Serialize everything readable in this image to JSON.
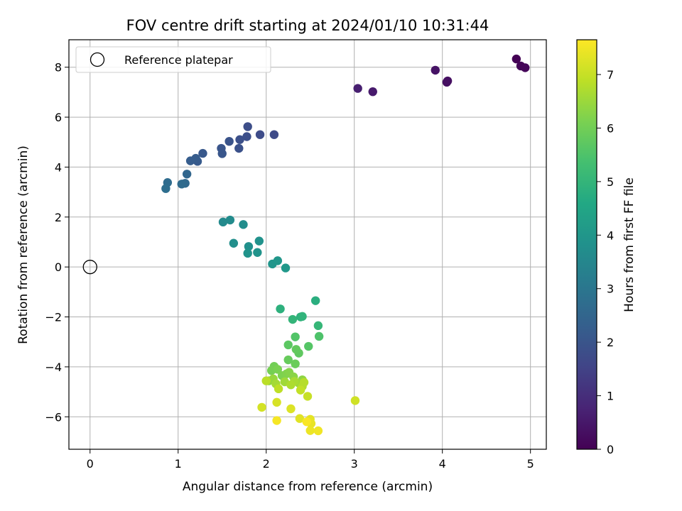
{
  "chart_data": {
    "type": "scatter",
    "title": "FOV centre drift starting at 2024/01/10 10:31:44",
    "xlabel": "Angular distance from reference (arcmin)",
    "ylabel": "Rotation from reference (arcmin)",
    "xlim": [
      -0.24,
      5.18
    ],
    "ylim": [
      -7.3,
      9.1
    ],
    "xticks": [
      0,
      1,
      2,
      3,
      4,
      5
    ],
    "yticks": [
      -6,
      -4,
      -2,
      0,
      2,
      4,
      6,
      8
    ],
    "grid": true,
    "legend": {
      "position": "top-left",
      "entries": [
        "Reference platepar"
      ]
    },
    "reference_point": {
      "x": 0,
      "y": 0,
      "label": "Reference platepar"
    },
    "colorbar": {
      "label": "Hours from first FF file",
      "colormap": "viridis",
      "range": [
        0,
        7.65
      ],
      "ticks": [
        0,
        1,
        2,
        3,
        4,
        5,
        6,
        7
      ]
    },
    "series": [
      {
        "x": [
          4.84,
          4.89,
          4.94,
          4.06,
          4.05,
          3.92,
          3.21,
          3.04,
          2.09,
          1.93,
          1.79,
          1.78,
          1.7,
          1.69,
          1.58,
          1.49,
          1.5,
          1.28,
          1.22,
          1.2,
          1.14,
          1.1,
          1.08,
          1.04,
          0.88,
          0.86,
          1.51,
          1.59,
          1.74,
          1.63,
          1.8,
          1.92,
          1.79,
          1.9,
          2.07,
          2.13,
          2.22,
          2.56,
          2.16,
          2.39,
          2.41,
          2.3,
          2.59,
          2.6,
          2.33,
          2.48,
          2.25,
          2.37,
          2.34,
          2.25,
          2.33,
          2.09,
          2.06,
          2.13,
          2.18,
          2.23,
          2.26,
          2.31,
          2.41,
          2.03,
          2.08,
          2.37,
          2.21,
          2.11,
          2.32,
          2.28,
          2.41,
          2.43,
          2.0,
          2.14,
          2.39,
          2.47,
          3.01,
          1.95,
          2.12,
          2.28,
          2.38,
          2.5,
          2.51,
          2.5,
          2.59,
          2.12,
          2.46
        ],
        "y": [
          8.33,
          8.05,
          7.98,
          7.45,
          7.4,
          7.88,
          7.02,
          7.15,
          5.3,
          5.3,
          5.62,
          5.22,
          5.1,
          4.75,
          5.03,
          4.75,
          4.54,
          4.55,
          4.23,
          4.35,
          4.25,
          3.72,
          3.35,
          3.32,
          3.38,
          3.14,
          1.8,
          1.88,
          1.7,
          0.95,
          0.82,
          1.04,
          0.55,
          0.58,
          0.12,
          0.25,
          -0.04,
          -1.35,
          -1.68,
          -2.0,
          -1.98,
          -2.1,
          -2.35,
          -2.78,
          -2.8,
          -3.18,
          -3.12,
          -3.45,
          -3.3,
          -3.72,
          -3.88,
          -3.98,
          -4.15,
          -4.1,
          -4.35,
          -4.28,
          -4.22,
          -4.4,
          -4.52,
          -4.56,
          -4.48,
          -4.65,
          -4.6,
          -4.68,
          -4.58,
          -4.72,
          -4.78,
          -4.62,
          -4.56,
          -4.88,
          -4.93,
          -5.18,
          -5.35,
          -5.62,
          -5.42,
          -5.68,
          -6.07,
          -6.1,
          -6.27,
          -6.55,
          -6.56,
          -6.15,
          -6.2
        ],
        "hours": [
          0.02,
          0.08,
          0.12,
          0.3,
          0.32,
          0.4,
          0.55,
          0.65,
          1.7,
          1.75,
          1.8,
          1.85,
          1.88,
          1.9,
          1.95,
          2.0,
          2.05,
          2.1,
          2.15,
          2.2,
          2.25,
          2.5,
          2.6,
          2.65,
          2.7,
          2.75,
          3.6,
          3.65,
          3.7,
          3.75,
          3.8,
          3.85,
          3.88,
          3.9,
          3.95,
          4.0,
          4.05,
          4.8,
          4.85,
          4.9,
          4.95,
          5.0,
          5.05,
          5.5,
          5.55,
          5.6,
          5.7,
          5.75,
          5.8,
          5.85,
          5.9,
          6.0,
          6.05,
          6.1,
          6.15,
          6.2,
          6.25,
          6.3,
          6.35,
          6.4,
          6.45,
          6.5,
          6.55,
          6.6,
          6.65,
          6.7,
          6.75,
          6.8,
          6.85,
          6.9,
          6.95,
          7.0,
          7.1,
          7.15,
          7.2,
          7.25,
          7.3,
          7.35,
          7.4,
          7.45,
          7.5,
          7.55,
          7.6
        ]
      }
    ]
  }
}
